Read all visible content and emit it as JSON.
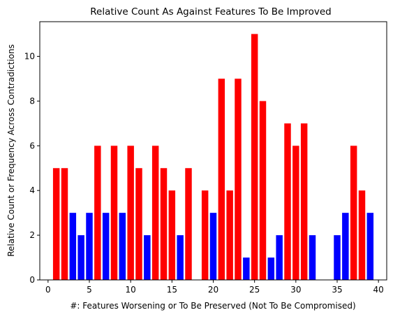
{
  "chart_data": {
    "type": "bar",
    "title": "Relative Count As Against Features To Be Improved",
    "xlabel": "#: Features Worsening or To Be Preserved (Not To Be Compromised)",
    "ylabel": "Relative Count or Frequency Across Contradictions",
    "xlim": [
      -1.0,
      41.0
    ],
    "ylim": [
      0,
      11.55
    ],
    "xticks": [
      0,
      5,
      10,
      15,
      20,
      25,
      30,
      35,
      40
    ],
    "yticks": [
      0,
      2,
      4,
      6,
      8,
      10
    ],
    "grid": false,
    "colors": {
      "red": "#ff0000",
      "blue": "#0000ff"
    },
    "bars": [
      {
        "x": 1,
        "value": 5,
        "color": "red"
      },
      {
        "x": 2,
        "value": 5,
        "color": "red"
      },
      {
        "x": 3,
        "value": 3,
        "color": "blue"
      },
      {
        "x": 4,
        "value": 2,
        "color": "blue"
      },
      {
        "x": 5,
        "value": 3,
        "color": "blue"
      },
      {
        "x": 6,
        "value": 6,
        "color": "red"
      },
      {
        "x": 7,
        "value": 3,
        "color": "blue"
      },
      {
        "x": 8,
        "value": 6,
        "color": "red"
      },
      {
        "x": 9,
        "value": 3,
        "color": "blue"
      },
      {
        "x": 10,
        "value": 6,
        "color": "red"
      },
      {
        "x": 11,
        "value": 5,
        "color": "red"
      },
      {
        "x": 12,
        "value": 2,
        "color": "blue"
      },
      {
        "x": 13,
        "value": 6,
        "color": "red"
      },
      {
        "x": 14,
        "value": 5,
        "color": "red"
      },
      {
        "x": 15,
        "value": 4,
        "color": "red"
      },
      {
        "x": 16,
        "value": 2,
        "color": "blue"
      },
      {
        "x": 17,
        "value": 5,
        "color": "red"
      },
      {
        "x": 19,
        "value": 4,
        "color": "red"
      },
      {
        "x": 20,
        "value": 3,
        "color": "blue"
      },
      {
        "x": 21,
        "value": 9,
        "color": "red"
      },
      {
        "x": 22,
        "value": 4,
        "color": "red"
      },
      {
        "x": 23,
        "value": 9,
        "color": "red"
      },
      {
        "x": 24,
        "value": 1,
        "color": "blue"
      },
      {
        "x": 25,
        "value": 11,
        "color": "red"
      },
      {
        "x": 26,
        "value": 8,
        "color": "red"
      },
      {
        "x": 27,
        "value": 1,
        "color": "blue"
      },
      {
        "x": 28,
        "value": 2,
        "color": "blue"
      },
      {
        "x": 29,
        "value": 7,
        "color": "red"
      },
      {
        "x": 30,
        "value": 6,
        "color": "red"
      },
      {
        "x": 31,
        "value": 7,
        "color": "red"
      },
      {
        "x": 32,
        "value": 2,
        "color": "blue"
      },
      {
        "x": 35,
        "value": 2,
        "color": "blue"
      },
      {
        "x": 36,
        "value": 3,
        "color": "blue"
      },
      {
        "x": 37,
        "value": 6,
        "color": "red"
      },
      {
        "x": 38,
        "value": 4,
        "color": "red"
      },
      {
        "x": 39,
        "value": 3,
        "color": "blue"
      }
    ]
  }
}
